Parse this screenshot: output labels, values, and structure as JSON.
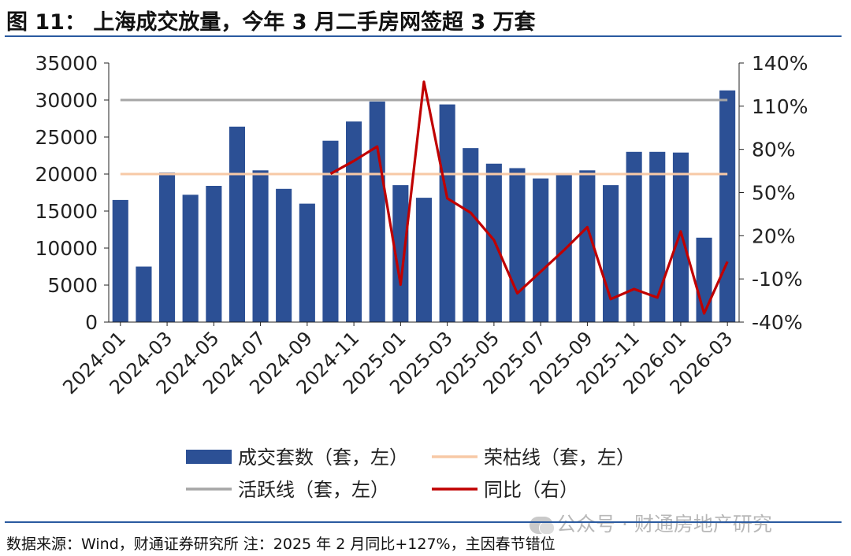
{
  "figure": {
    "title": "图 11：   上海成交放量，今年 3 月二手房网签超 3 万套",
    "source_note": "数据来源：Wind，财通证券研究所  注：2025 年 2 月同比+127%，主因春节错位",
    "watermark": "公众号 · 财通房地产研究"
  },
  "colors": {
    "bar": "#2c5095",
    "prosperity_line": "#f7c9a6",
    "active_line": "#a6a6a6",
    "yoy_line": "#c00000",
    "rule": "#2a5aa0"
  },
  "chart_data": {
    "type": "bar",
    "title": "上海成交放量，今年 3 月二手房网签超 3 万套",
    "categories": [
      "2024-01",
      "2024-02",
      "2024-03",
      "2024-04",
      "2024-05",
      "2024-06",
      "2024-07",
      "2024-08",
      "2024-09",
      "2024-10",
      "2024-11",
      "2024-12",
      "2025-01",
      "2025-02",
      "2025-03",
      "2025-04",
      "2025-05",
      "2025-06",
      "2025-07",
      "2025-08",
      "2025-09",
      "2025-10",
      "2025-11",
      "2025-12",
      "2026-01",
      "2026-02",
      "2026-03"
    ],
    "tick_labels": [
      "2024-01",
      "2024-03",
      "2024-05",
      "2024-07",
      "2024-09",
      "2024-11",
      "2025-01",
      "2025-03",
      "2025-05",
      "2025-07",
      "2025-09",
      "2025-11",
      "2026-01",
      "2026-03"
    ],
    "series": [
      {
        "name": "成交套数（套，左）",
        "type": "bar",
        "axis": "left",
        "values": [
          16500,
          7500,
          20200,
          17200,
          18400,
          26400,
          20500,
          18000,
          16000,
          24500,
          27100,
          29800,
          18500,
          16800,
          29400,
          23500,
          21400,
          20800,
          19400,
          19900,
          20500,
          18500,
          23000,
          23000,
          22900,
          11400,
          31300
        ]
      },
      {
        "name": "荣枯线（套，左）",
        "type": "line",
        "axis": "left",
        "values": [
          20000,
          20000,
          20000,
          20000,
          20000,
          20000,
          20000,
          20000,
          20000,
          20000,
          20000,
          20000,
          20000,
          20000,
          20000,
          20000,
          20000,
          20000,
          20000,
          20000,
          20000,
          20000,
          20000,
          20000,
          20000,
          20000,
          20000
        ]
      },
      {
        "name": "活跃线（套，左）",
        "type": "line",
        "axis": "left",
        "values": [
          30000,
          30000,
          30000,
          30000,
          30000,
          30000,
          30000,
          30000,
          30000,
          30000,
          30000,
          30000,
          30000,
          30000,
          30000,
          30000,
          30000,
          30000,
          30000,
          30000,
          30000,
          30000,
          30000,
          30000,
          30000,
          30000,
          30000
        ]
      },
      {
        "name": "同比（右）",
        "type": "line",
        "axis": "right",
        "values": [
          null,
          null,
          null,
          null,
          null,
          null,
          null,
          null,
          null,
          63,
          72,
          82,
          -14,
          127,
          46,
          36,
          17,
          -20,
          -5,
          10,
          26,
          -24,
          -17,
          -23,
          23,
          -34,
          2
        ]
      }
    ],
    "y_left": {
      "min": 0,
      "max": 35000,
      "ticks": [
        0,
        5000,
        10000,
        15000,
        20000,
        25000,
        30000,
        35000
      ]
    },
    "y_right": {
      "min": -40,
      "max": 140,
      "ticks": [
        -40,
        -10,
        20,
        50,
        80,
        110,
        140
      ],
      "tick_labels": [
        "-40%",
        "-10%",
        "20%",
        "50%",
        "80%",
        "110%",
        "140%"
      ]
    },
    "legend_position": "bottom",
    "grid": false
  }
}
